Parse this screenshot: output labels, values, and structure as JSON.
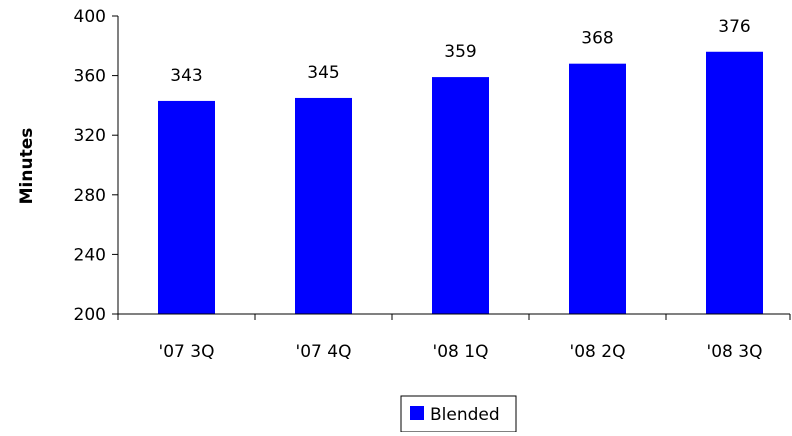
{
  "chart_data": {
    "type": "bar",
    "categories": [
      "'07 3Q",
      "'07 4Q",
      "'08 1Q",
      "'08 2Q",
      "'08 3Q"
    ],
    "series": [
      {
        "name": "Blended",
        "values": [
          343,
          345,
          359,
          368,
          376
        ],
        "color": "#0000FF"
      }
    ],
    "data_labels": [
      "343",
      "345",
      "359",
      "368",
      "376"
    ],
    "ylabel": "Minutes",
    "xlabel": "",
    "ylim": [
      200,
      400
    ],
    "yticks": [
      200,
      240,
      280,
      320,
      360,
      400
    ],
    "grid": false,
    "legend": {
      "position": "bottom",
      "entries": [
        "Blended"
      ]
    }
  }
}
